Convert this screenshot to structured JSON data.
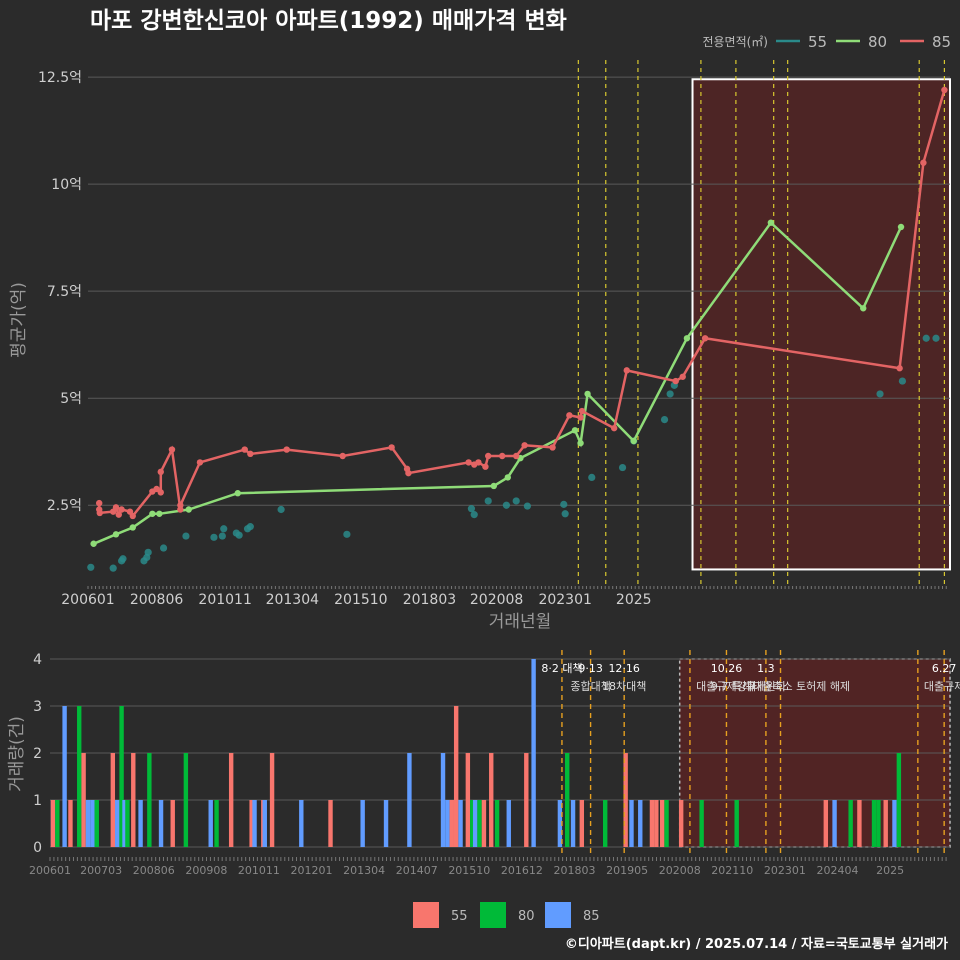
{
  "chart_data": [
    {
      "type": "line",
      "title": "마포 강변한신코아 아파트(1992) 매매가격 변화",
      "xlabel": "거래년월",
      "ylabel": "평균가(억)",
      "legend_title": "전용면적(㎡)",
      "legend_position": "top-right",
      "ylim": [
        0.8,
        12.9
      ],
      "yticks": [
        2.5,
        5,
        7.5,
        10,
        12.5
      ],
      "ytick_labels": [
        "2.5억",
        "5억",
        "7.5억",
        "10억",
        "12.5억"
      ],
      "xticks": [
        "200601",
        "200806",
        "201011",
        "201304",
        "201510",
        "201803",
        "202008",
        "202301",
        "2025"
      ],
      "series": [
        {
          "name": "55",
          "style": "points",
          "color": "#2a8a8a",
          "points": [
            [
              2006.1,
              1.05
            ],
            [
              2006.9,
              1.03
            ],
            [
              2007.2,
              1.2
            ],
            [
              2007.25,
              1.25
            ],
            [
              2008.0,
              1.2
            ],
            [
              2008.1,
              1.28
            ],
            [
              2008.15,
              1.4
            ],
            [
              2008.7,
              1.5
            ],
            [
              2009.5,
              1.78
            ],
            [
              2010.5,
              1.75
            ],
            [
              2010.8,
              1.78
            ],
            [
              2010.85,
              1.95
            ],
            [
              2011.3,
              1.85
            ],
            [
              2011.4,
              1.8
            ],
            [
              2011.7,
              1.95
            ],
            [
              2011.8,
              2.0
            ],
            [
              2012.9,
              2.4
            ],
            [
              2015.25,
              1.82
            ],
            [
              2019.7,
              2.42
            ],
            [
              2019.8,
              2.28
            ],
            [
              2020.3,
              2.6
            ],
            [
              2020.95,
              2.5
            ],
            [
              2021.3,
              2.6
            ],
            [
              2021.7,
              2.48
            ],
            [
              2023.0,
              2.52
            ],
            [
              2023.05,
              2.3
            ],
            [
              2024.0,
              3.15
            ],
            [
              2025.1,
              3.38
            ],
            [
              2025.5,
              4.0
            ],
            [
              2026.6,
              4.5
            ],
            [
              2026.8,
              5.1
            ],
            [
              2026.95,
              5.3
            ],
            [
              2034.3,
              5.1
            ],
            [
              2035.1,
              5.4
            ],
            [
              2035.95,
              6.4
            ],
            [
              2036.3,
              6.4
            ]
          ]
        },
        {
          "name": "80",
          "style": "line",
          "color": "#8fdc78",
          "points": [
            [
              2006.2,
              1.6
            ],
            [
              2007.0,
              1.82
            ],
            [
              2007.6,
              1.98
            ],
            [
              2008.3,
              2.3
            ],
            [
              2008.55,
              2.3
            ],
            [
              2009.6,
              2.4
            ],
            [
              2011.35,
              2.78
            ],
            [
              2020.5,
              2.95
            ],
            [
              2021.0,
              3.15
            ],
            [
              2021.45,
              3.6
            ],
            [
              2023.4,
              4.25
            ],
            [
              2023.6,
              3.95
            ],
            [
              2023.85,
              5.1
            ],
            [
              2025.5,
              4.0
            ],
            [
              2027.4,
              6.4
            ],
            [
              2030.4,
              9.1
            ],
            [
              2033.7,
              7.1
            ],
            [
              2035.05,
              9.0
            ]
          ]
        },
        {
          "name": "85",
          "style": "line",
          "color": "#e36464",
          "points": [
            [
              2006.4,
              2.55
            ],
            [
              2006.4,
              2.4
            ],
            [
              2006.42,
              2.32
            ],
            [
              2006.9,
              2.35
            ],
            [
              2007.0,
              2.45
            ],
            [
              2007.1,
              2.28
            ],
            [
              2007.2,
              2.4
            ],
            [
              2007.5,
              2.35
            ],
            [
              2007.6,
              2.25
            ],
            [
              2008.3,
              2.82
            ],
            [
              2008.45,
              2.88
            ],
            [
              2008.6,
              2.8
            ],
            [
              2008.6,
              3.28
            ],
            [
              2009.0,
              3.8
            ],
            [
              2009.3,
              2.4
            ],
            [
              2009.3,
              2.5
            ],
            [
              2010.0,
              3.5
            ],
            [
              2011.6,
              3.8
            ],
            [
              2011.8,
              3.7
            ],
            [
              2013.1,
              3.8
            ],
            [
              2015.1,
              3.65
            ],
            [
              2016.85,
              3.85
            ],
            [
              2017.4,
              3.35
            ],
            [
              2017.45,
              3.25
            ],
            [
              2019.6,
              3.5
            ],
            [
              2019.8,
              3.45
            ],
            [
              2019.95,
              3.5
            ],
            [
              2020.2,
              3.4
            ],
            [
              2020.3,
              3.65
            ],
            [
              2020.8,
              3.65
            ],
            [
              2021.3,
              3.65
            ],
            [
              2021.6,
              3.9
            ],
            [
              2022.6,
              3.85
            ],
            [
              2023.2,
              4.6
            ],
            [
              2023.6,
              4.55
            ],
            [
              2023.65,
              4.7
            ],
            [
              2024.8,
              4.3
            ],
            [
              2025.25,
              5.65
            ],
            [
              2027.0,
              5.4
            ],
            [
              2027.25,
              5.5
            ],
            [
              2028.05,
              6.4
            ],
            [
              2035.0,
              5.7
            ],
            [
              2035.85,
              10.5
            ],
            [
              2036.6,
              12.2
            ]
          ]
        }
      ],
      "vlines": [
        2023.52,
        2024.5,
        2025.65,
        2027.9,
        2029.15,
        2030.5,
        2031.0,
        2035.7,
        2036.6
      ],
      "highlight_range": [
        2027.6,
        2036.8
      ]
    },
    {
      "type": "bar",
      "ylabel": "거래량(건)",
      "ylim": [
        0,
        4
      ],
      "yticks": [
        0,
        1,
        2,
        3,
        4
      ],
      "ytick_labels": [
        "0",
        "1",
        "2",
        "3",
        "4"
      ],
      "xticks": [
        "200601",
        "200703",
        "200806",
        "200908",
        "201011",
        "201201",
        "201304",
        "201407",
        "201510",
        "201612",
        "201803",
        "201905",
        "202008",
        "202110",
        "202301",
        "202404",
        "2025"
      ],
      "legend": [
        "55",
        "80",
        "85"
      ],
      "legend_position": "bottom",
      "colors": {
        "55": "#f8766d",
        "80": "#00ba38",
        "85": "#619cff"
      },
      "bars": [
        {
          "x": 2006.1,
          "series": "85",
          "value": 1
        },
        {
          "x": 2006.1,
          "series": "55",
          "value": 1
        },
        {
          "x": 2006.25,
          "series": "80",
          "value": 1
        },
        {
          "x": 2006.5,
          "series": "85",
          "value": 3
        },
        {
          "x": 2006.7,
          "series": "55",
          "value": 1
        },
        {
          "x": 2007.0,
          "series": "80",
          "value": 3
        },
        {
          "x": 2007.15,
          "series": "55",
          "value": 2
        },
        {
          "x": 2007.3,
          "series": "85",
          "value": 1
        },
        {
          "x": 2007.45,
          "series": "85",
          "value": 1
        },
        {
          "x": 2007.6,
          "series": "80",
          "value": 1
        },
        {
          "x": 2008.15,
          "series": "55",
          "value": 2
        },
        {
          "x": 2008.3,
          "series": "85",
          "value": 1
        },
        {
          "x": 2008.45,
          "series": "80",
          "value": 3
        },
        {
          "x": 2008.55,
          "series": "85",
          "value": 1
        },
        {
          "x": 2008.65,
          "series": "80",
          "value": 1
        },
        {
          "x": 2008.85,
          "series": "55",
          "value": 2
        },
        {
          "x": 2009.1,
          "series": "85",
          "value": 1
        },
        {
          "x": 2009.4,
          "series": "80",
          "value": 2
        },
        {
          "x": 2009.8,
          "series": "85",
          "value": 1
        },
        {
          "x": 2010.2,
          "series": "55",
          "value": 1
        },
        {
          "x": 2010.65,
          "series": "80",
          "value": 2
        },
        {
          "x": 2011.5,
          "series": "85",
          "value": 1
        },
        {
          "x": 2011.7,
          "series": "80",
          "value": 1
        },
        {
          "x": 2012.2,
          "series": "55",
          "value": 2
        },
        {
          "x": 2012.9,
          "series": "55",
          "value": 1
        },
        {
          "x": 2013.0,
          "series": "85",
          "value": 1
        },
        {
          "x": 2013.3,
          "series": "55",
          "value": 1
        },
        {
          "x": 2013.35,
          "series": "85",
          "value": 1
        },
        {
          "x": 2013.6,
          "series": "55",
          "value": 2
        },
        {
          "x": 2014.6,
          "series": "85",
          "value": 1
        },
        {
          "x": 2015.6,
          "series": "55",
          "value": 1
        },
        {
          "x": 2016.7,
          "series": "85",
          "value": 1
        },
        {
          "x": 2017.5,
          "series": "85",
          "value": 1
        },
        {
          "x": 2018.3,
          "series": "85",
          "value": 2
        },
        {
          "x": 2019.45,
          "series": "85",
          "value": 2
        },
        {
          "x": 2019.6,
          "series": "85",
          "value": 1
        },
        {
          "x": 2019.75,
          "series": "55",
          "value": 1
        },
        {
          "x": 2019.9,
          "series": "55",
          "value": 3
        },
        {
          "x": 2020.05,
          "series": "85",
          "value": 1
        },
        {
          "x": 2020.3,
          "series": "55",
          "value": 2
        },
        {
          "x": 2020.45,
          "series": "80",
          "value": 1
        },
        {
          "x": 2020.55,
          "series": "85",
          "value": 1
        },
        {
          "x": 2020.7,
          "series": "80",
          "value": 1
        },
        {
          "x": 2020.85,
          "series": "55",
          "value": 1
        },
        {
          "x": 2021.1,
          "series": "55",
          "value": 2
        },
        {
          "x": 2021.3,
          "series": "80",
          "value": 1
        },
        {
          "x": 2021.7,
          "series": "85",
          "value": 1
        },
        {
          "x": 2022.3,
          "series": "55",
          "value": 2
        },
        {
          "x": 2022.55,
          "series": "85",
          "value": 4
        },
        {
          "x": 2023.45,
          "series": "85",
          "value": 1
        },
        {
          "x": 2023.7,
          "series": "80",
          "value": 2
        },
        {
          "x": 2023.9,
          "series": "85",
          "value": 1
        },
        {
          "x": 2024.2,
          "series": "55",
          "value": 1
        },
        {
          "x": 2025.0,
          "series": "80",
          "value": 1
        },
        {
          "x": 2025.7,
          "series": "55",
          "value": 2
        },
        {
          "x": 2025.9,
          "series": "85",
          "value": 1
        },
        {
          "x": 2026.2,
          "series": "85",
          "value": 1
        },
        {
          "x": 2026.6,
          "series": "55",
          "value": 1
        },
        {
          "x": 2026.75,
          "series": "55",
          "value": 1
        },
        {
          "x": 2026.95,
          "series": "55",
          "value": 1
        },
        {
          "x": 2027.1,
          "series": "80",
          "value": 1
        },
        {
          "x": 2027.6,
          "series": "55",
          "value": 1
        },
        {
          "x": 2028.3,
          "series": "80",
          "value": 1
        },
        {
          "x": 2029.5,
          "series": "80",
          "value": 1
        },
        {
          "x": 2032.55,
          "series": "55",
          "value": 1
        },
        {
          "x": 2032.85,
          "series": "85",
          "value": 1
        },
        {
          "x": 2033.4,
          "series": "80",
          "value": 1
        },
        {
          "x": 2033.7,
          "series": "55",
          "value": 1
        },
        {
          "x": 2034.2,
          "series": "80",
          "value": 1
        },
        {
          "x": 2034.35,
          "series": "80",
          "value": 1
        },
        {
          "x": 2034.6,
          "series": "55",
          "value": 1
        },
        {
          "x": 2034.9,
          "series": "85",
          "value": 1
        },
        {
          "x": 2035.05,
          "series": "80",
          "value": 2
        }
      ],
      "policy_lines": [
        {
          "x": 2023.52,
          "label1": "8·2 대책",
          "label2": ""
        },
        {
          "x": 2024.5,
          "label1": "9·13",
          "label2": "종합대책"
        },
        {
          "x": 2025.65,
          "label1": "12·16",
          "label2": "18차대책"
        },
        {
          "x": 2027.9,
          "label1": "",
          "label2": ""
        },
        {
          "x": 2029.15,
          "label1": "10.26",
          "label2": "대출규제강화"
        },
        {
          "x": 2030.5,
          "label1": "1.3",
          "label2": "규제완화"
        },
        {
          "x": 2031.0,
          "label1": "",
          "label2": "9.7 특례대출축소 토허제 해제"
        },
        {
          "x": 2035.7,
          "label1": "",
          "label2": ""
        },
        {
          "x": 2036.6,
          "label1": "6.27",
          "label2": "대출규제"
        }
      ],
      "highlight_range": [
        2027.55,
        2036.8
      ]
    }
  ],
  "footer": {
    "source": "©디아파트(dapt.kr) / 2025.07.14 / 자료=국토교통부 실거래가"
  }
}
